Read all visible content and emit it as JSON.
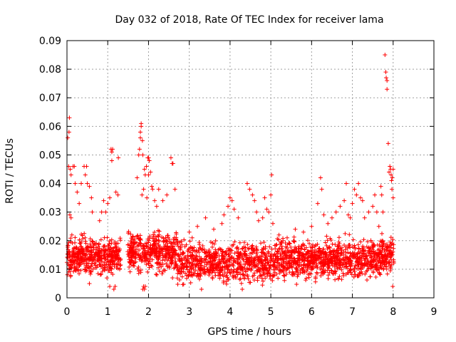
{
  "chart_data": {
    "type": "scatter",
    "title": "Day 032 of 2018, Rate Of TEC Index for receiver lama",
    "xlabel": "GPS time / hours",
    "ylabel": "ROTI / TECUs",
    "xlim": [
      0,
      9
    ],
    "ylim": [
      0,
      0.09
    ],
    "x_ticks": [
      0,
      1,
      2,
      3,
      4,
      5,
      6,
      7,
      8,
      9
    ],
    "x_tick_labels": [
      "0",
      "1",
      "2",
      "3",
      "4",
      "5",
      "6",
      "7",
      "8",
      "9"
    ],
    "y_ticks": [
      0,
      0.01,
      0.02,
      0.03,
      0.04,
      0.05,
      0.06,
      0.07,
      0.08,
      0.09
    ],
    "y_tick_labels": [
      "0",
      "0.01",
      "0.02",
      "0.03",
      "0.04",
      "0.05",
      "0.06",
      "0.07",
      "0.08",
      "0.09"
    ],
    "grid": true,
    "marker": "+",
    "color": "#ff0000",
    "data_gap_hours": [
      1.32,
      1.48
    ],
    "series": [
      {
        "name": "ROTI",
        "points": [
          [
            0.02,
            0.056
          ],
          [
            0.05,
            0.058
          ],
          [
            0.06,
            0.063
          ],
          [
            0.04,
            0.046
          ],
          [
            0.08,
            0.045
          ],
          [
            0.1,
            0.043
          ],
          [
            0.15,
            0.046
          ],
          [
            0.18,
            0.046
          ],
          [
            0.2,
            0.04
          ],
          [
            0.07,
            0.029
          ],
          [
            0.1,
            0.028
          ],
          [
            0.12,
            0.022
          ],
          [
            0.35,
            0.04
          ],
          [
            0.42,
            0.046
          ],
          [
            0.45,
            0.043
          ],
          [
            0.48,
            0.046
          ],
          [
            0.5,
            0.04
          ],
          [
            0.55,
            0.039
          ],
          [
            0.6,
            0.035
          ],
          [
            0.62,
            0.03
          ],
          [
            0.3,
            0.033
          ],
          [
            0.25,
            0.037
          ],
          [
            0.8,
            0.027
          ],
          [
            0.85,
            0.03
          ],
          [
            0.9,
            0.034
          ],
          [
            0.95,
            0.03
          ],
          [
            1.0,
            0.033
          ],
          [
            1.05,
            0.035
          ],
          [
            1.08,
            0.052
          ],
          [
            1.1,
            0.051
          ],
          [
            1.12,
            0.052
          ],
          [
            1.1,
            0.048
          ],
          [
            1.2,
            0.037
          ],
          [
            1.25,
            0.036
          ],
          [
            1.26,
            0.049
          ],
          [
            1.05,
            0.004
          ],
          [
            1.15,
            0.003
          ],
          [
            1.18,
            0.004
          ],
          [
            0.55,
            0.005
          ],
          [
            1.72,
            0.042
          ],
          [
            1.76,
            0.05
          ],
          [
            1.78,
            0.052
          ],
          [
            1.8,
            0.056
          ],
          [
            1.8,
            0.058
          ],
          [
            1.82,
            0.06
          ],
          [
            1.82,
            0.061
          ],
          [
            1.85,
            0.055
          ],
          [
            1.86,
            0.05
          ],
          [
            1.9,
            0.045
          ],
          [
            1.92,
            0.043
          ],
          [
            1.95,
            0.046
          ],
          [
            1.98,
            0.049
          ],
          [
            2.0,
            0.049
          ],
          [
            2.02,
            0.048
          ],
          [
            2.0,
            0.043
          ],
          [
            2.05,
            0.044
          ],
          [
            2.08,
            0.039
          ],
          [
            1.88,
            0.038
          ],
          [
            1.84,
            0.036
          ],
          [
            1.96,
            0.035
          ],
          [
            2.1,
            0.038
          ],
          [
            2.15,
            0.034
          ],
          [
            2.2,
            0.032
          ],
          [
            2.25,
            0.038
          ],
          [
            2.35,
            0.034
          ],
          [
            2.45,
            0.036
          ],
          [
            2.55,
            0.049
          ],
          [
            2.58,
            0.047
          ],
          [
            2.6,
            0.047
          ],
          [
            2.65,
            0.038
          ],
          [
            1.86,
            0.003
          ],
          [
            1.88,
            0.004
          ],
          [
            1.9,
            0.003
          ],
          [
            1.92,
            0.004
          ],
          [
            3.0,
            0.023
          ],
          [
            3.2,
            0.025
          ],
          [
            3.4,
            0.028
          ],
          [
            3.6,
            0.024
          ],
          [
            3.8,
            0.026
          ],
          [
            3.85,
            0.029
          ],
          [
            3.95,
            0.032
          ],
          [
            4.0,
            0.035
          ],
          [
            4.05,
            0.034
          ],
          [
            4.1,
            0.031
          ],
          [
            4.2,
            0.028
          ],
          [
            4.3,
            0.003
          ],
          [
            3.3,
            0.003
          ],
          [
            4.42,
            0.04
          ],
          [
            4.48,
            0.038
          ],
          [
            4.55,
            0.036
          ],
          [
            4.6,
            0.034
          ],
          [
            4.65,
            0.03
          ],
          [
            4.7,
            0.027
          ],
          [
            4.8,
            0.028
          ],
          [
            4.85,
            0.035
          ],
          [
            4.9,
            0.031
          ],
          [
            4.95,
            0.03
          ],
          [
            5.0,
            0.036
          ],
          [
            5.02,
            0.043
          ],
          [
            5.05,
            0.026
          ],
          [
            5.2,
            0.022
          ],
          [
            5.4,
            0.021
          ],
          [
            5.6,
            0.024
          ],
          [
            5.8,
            0.023
          ],
          [
            6.0,
            0.025
          ],
          [
            6.15,
            0.033
          ],
          [
            6.22,
            0.042
          ],
          [
            6.25,
            0.038
          ],
          [
            6.3,
            0.029
          ],
          [
            6.4,
            0.026
          ],
          [
            6.5,
            0.028
          ],
          [
            6.6,
            0.03
          ],
          [
            6.7,
            0.032
          ],
          [
            6.8,
            0.034
          ],
          [
            6.85,
            0.04
          ],
          [
            6.9,
            0.029
          ],
          [
            6.95,
            0.028
          ],
          [
            7.0,
            0.033
          ],
          [
            7.05,
            0.038
          ],
          [
            7.1,
            0.036
          ],
          [
            7.15,
            0.04
          ],
          [
            7.2,
            0.035
          ],
          [
            7.25,
            0.034
          ],
          [
            7.3,
            0.028
          ],
          [
            7.4,
            0.03
          ],
          [
            7.5,
            0.032
          ],
          [
            7.55,
            0.036
          ],
          [
            7.6,
            0.03
          ],
          [
            7.65,
            0.025
          ],
          [
            7.7,
            0.039
          ],
          [
            7.72,
            0.036
          ],
          [
            7.75,
            0.03
          ],
          [
            7.8,
            0.085
          ],
          [
            7.82,
            0.079
          ],
          [
            7.83,
            0.077
          ],
          [
            7.85,
            0.076
          ],
          [
            7.85,
            0.073
          ],
          [
            7.88,
            0.054
          ],
          [
            7.9,
            0.044
          ],
          [
            7.92,
            0.046
          ],
          [
            7.94,
            0.045
          ],
          [
            7.95,
            0.043
          ],
          [
            7.96,
            0.041
          ],
          [
            7.98,
            0.042
          ],
          [
            8.0,
            0.045
          ],
          [
            7.97,
            0.038
          ],
          [
            8.0,
            0.035
          ],
          [
            7.99,
            0.004
          ]
        ]
      }
    ]
  }
}
